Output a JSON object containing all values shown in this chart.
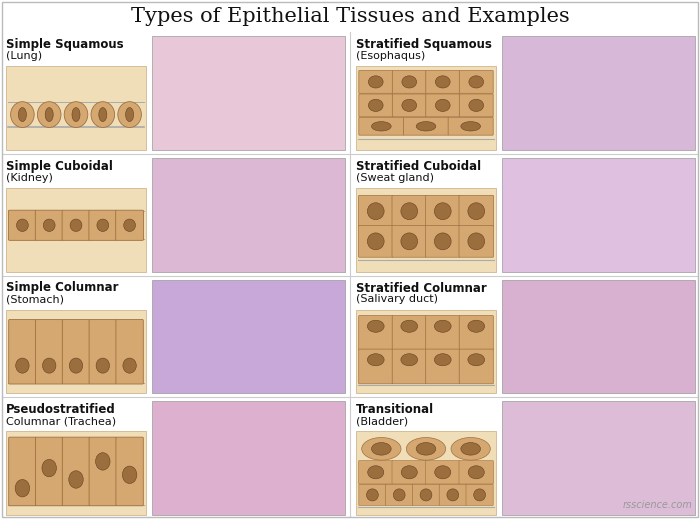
{
  "title": "Types of Epithelial Tissues and Examples",
  "title_fontsize": 15,
  "background_color": "#ffffff",
  "watermark": "rsscience.com",
  "entries": [
    {
      "bold_text": "Simple Squamous",
      "normal_text": "(Lung)",
      "row": 0,
      "col": 0,
      "photo_color": "#e8c8d8"
    },
    {
      "bold_text": "Simple Cuboidal",
      "normal_text": "(Kidney)",
      "row": 1,
      "col": 0,
      "photo_color": "#ddb8d4"
    },
    {
      "bold_text": "Simple Columnar",
      "normal_text": "(Stomach)",
      "row": 2,
      "col": 0,
      "photo_color": "#c8a8d8"
    },
    {
      "bold_text": "Pseudostratified",
      "normal_text": "Columnar (Trachea)",
      "row": 3,
      "col": 0,
      "photo_color": "#ddb0d0"
    },
    {
      "bold_text": "Stratified Squamous",
      "normal_text": "(Esophaqus)",
      "row": 0,
      "col": 1,
      "photo_color": "#d8b8d8"
    },
    {
      "bold_text": "Stratified Cuboidal",
      "normal_text": "(Sweat gland)",
      "row": 1,
      "col": 1,
      "photo_color": "#e0c0e0"
    },
    {
      "bold_text": "Stratified Columnar",
      "normal_text": "(Salivary duct)",
      "row": 2,
      "col": 1,
      "photo_color": "#d8b0d0"
    },
    {
      "bold_text": "Transitional",
      "normal_text": "(Bladder)",
      "row": 3,
      "col": 1,
      "photo_color": "#ddbcd8"
    }
  ]
}
